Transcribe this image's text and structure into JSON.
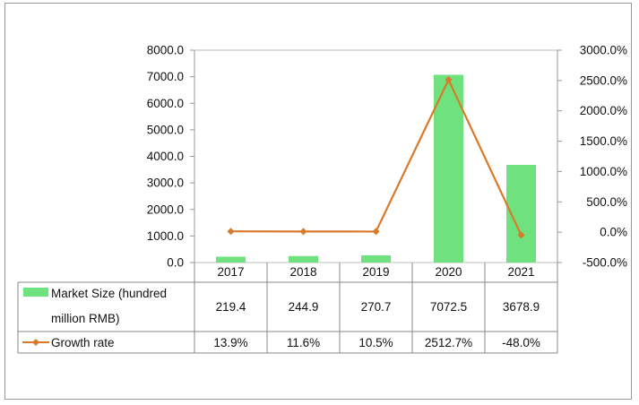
{
  "chart_data": {
    "type": "bar+line",
    "categories": [
      "2017",
      "2018",
      "2019",
      "2020",
      "2021"
    ],
    "series": [
      {
        "name": "Market Size (hundred million RMB)",
        "name_lines": [
          "Market Size (hundred",
          "million RMB)"
        ],
        "type": "bar",
        "axis": "left",
        "color": "#6fe27f",
        "values": [
          219.4,
          244.9,
          270.7,
          7072.5,
          3678.9
        ],
        "labels": [
          "219.4",
          "244.9",
          "270.7",
          "7072.5",
          "3678.9"
        ]
      },
      {
        "name": "Growth rate",
        "type": "line",
        "axis": "right",
        "color": "#d9792a",
        "values": [
          13.9,
          11.6,
          10.5,
          2512.7,
          -48.0
        ],
        "labels": [
          "13.9%",
          "11.6%",
          "10.5%",
          "2512.7%",
          "-48.0%"
        ]
      }
    ],
    "y_left": {
      "range": [
        0,
        8000
      ],
      "ticks": [
        "0.0",
        "1000.0",
        "2000.0",
        "3000.0",
        "4000.0",
        "5000.0",
        "6000.0",
        "7000.0",
        "8000.0"
      ]
    },
    "y_right": {
      "range": [
        -500,
        3000
      ],
      "ticks": [
        "-500.0%",
        "0.0%",
        "500.0%",
        "1000.0%",
        "1500.0%",
        "2000.0%",
        "2500.0%",
        "3000.0%"
      ]
    },
    "grid": false,
    "legend": "data-table"
  }
}
